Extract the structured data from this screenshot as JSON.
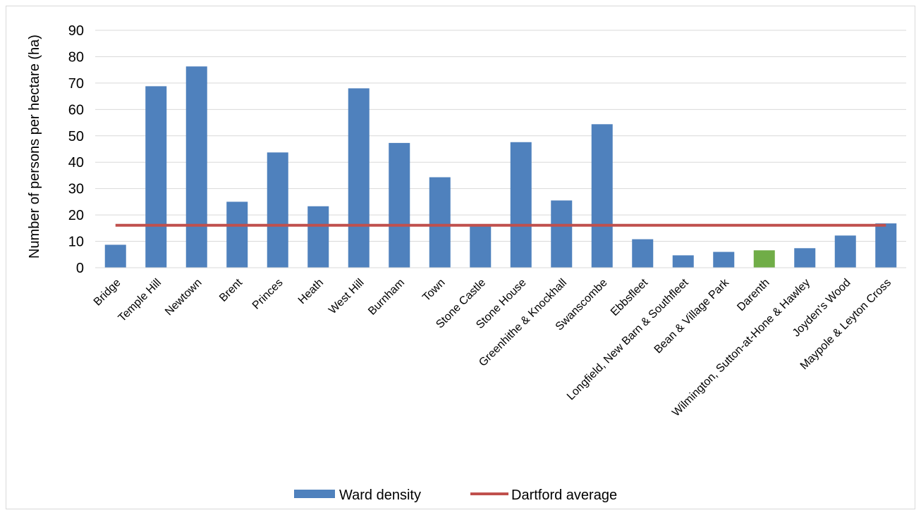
{
  "chart_data": {
    "type": "bar",
    "categories": [
      "Bridge",
      "Temple Hill",
      "Newtown",
      "Brent",
      "Princes",
      "Heath",
      "West Hill",
      "Burnham",
      "Town",
      "Stone Castle",
      "Stone House",
      "Greenhithe & Knockhall",
      "Swanscombe",
      "Ebbsfleet",
      "Longfield, New Barn & Southfleet",
      "Bean & Village Park",
      "Darenth",
      "Wilmington, Sutton-at-Hone & Hawley",
      "Joyden's Wood",
      "Maypole & Leyton Cross"
    ],
    "series": [
      {
        "name": "Ward density",
        "kind": "bar",
        "color": "#4f81bd",
        "values": [
          8.7,
          68.8,
          76.3,
          25.0,
          43.7,
          23.3,
          68.0,
          47.3,
          34.3,
          16.4,
          47.6,
          25.5,
          54.4,
          10.8,
          4.7,
          6.0,
          6.6,
          7.4,
          12.2,
          16.8
        ]
      },
      {
        "name": "Dartford average",
        "kind": "line",
        "color": "#c0504d",
        "value": 16.1
      }
    ],
    "highlight": {
      "category": "Darenth",
      "color": "#70ad47"
    },
    "ylabel": "Number of persons per hectare (ha)",
    "ylim": [
      0,
      90
    ],
    "yticks": [
      0,
      10,
      20,
      30,
      40,
      50,
      60,
      70,
      80,
      90
    ],
    "grid": true,
    "legend_position": "bottom"
  }
}
